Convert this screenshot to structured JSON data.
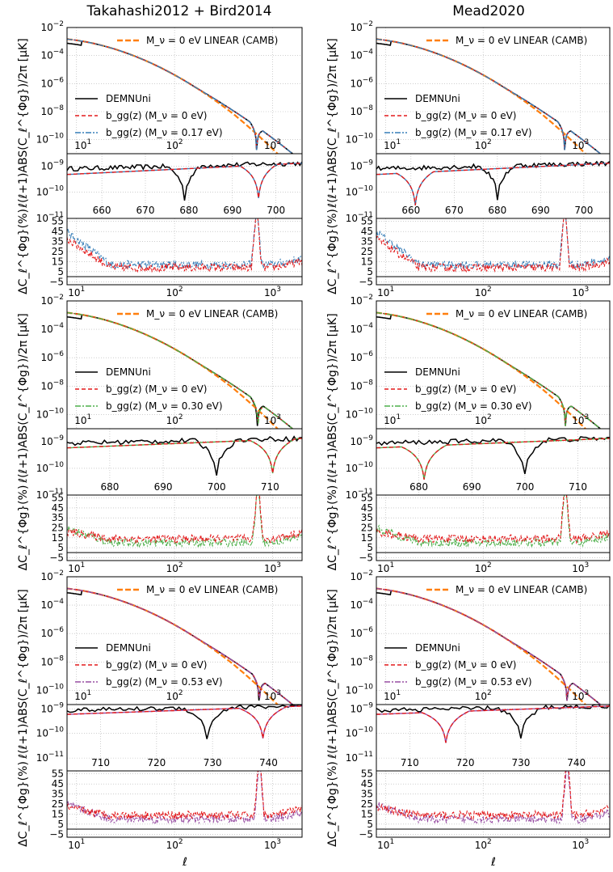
{
  "columns": [
    "Takahashi2012 + Bird2014",
    "Mead2020"
  ],
  "xlabel": "ℓ",
  "ylabel_main": "ℓ(ℓ+1)ABS(C_ℓ^{Φg})/2π [μK]",
  "ylabel_diff": "ΔC_ℓ^{Φg}(%)",
  "colors": {
    "demnuni": "#000000",
    "linear": "#ff7f0e",
    "bgg_massless": "#e41a1c",
    "bgg_017": "#377eb8",
    "bgg_030": "#4daf4a",
    "bgg_053": "#984ea3",
    "grid": "#b0b0b0"
  },
  "chart_data": [
    {
      "type": "line",
      "row": 0,
      "col": 0,
      "model": "Takahashi2012 + Bird2014",
      "neutrino_mass": "0.17",
      "legend": {
        "linear": "M_ν = 0 eV LINEAR (CAMB)",
        "demnuni": "DEMNUni",
        "massless": "b_gg(z)  (M_ν = 0 eV)",
        "massive": "b_gg(z)  (M_ν = 0.17 eV)"
      },
      "main": {
        "xlim": [
          8,
          2000
        ],
        "ylim": [
          1e-11,
          0.01
        ],
        "xticks": [
          "10^1",
          "10^2",
          "10^3"
        ],
        "yticks": [
          "10^-2",
          "10^-4",
          "10^-6",
          "10^-8",
          "10^-10"
        ],
        "zero_crossing": {
          "demnuni": 690,
          "massless": 690,
          "massive": 690
        }
      },
      "zoom": {
        "xlim": [
          652,
          706
        ],
        "ylim": [
          1e-11,
          3e-09
        ],
        "xticks": [
          660,
          670,
          680,
          690,
          700
        ],
        "yticks": [
          "10^-9",
          "10^-10",
          "10^-11"
        ],
        "dip_demnuni": 679,
        "dip_model": 696
      },
      "diff": {
        "xlim": [
          8,
          2000
        ],
        "ylim": [
          -8,
          58
        ],
        "yticks": [
          55,
          45,
          35,
          25,
          15,
          5,
          -5
        ]
      }
    },
    {
      "type": "line",
      "row": 0,
      "col": 1,
      "model": "Mead2020",
      "neutrino_mass": "0.17",
      "legend": {
        "linear": "M_ν = 0 eV LINEAR (CAMB)",
        "demnuni": "DEMNUni",
        "massless": "b_gg(z)  (M_ν = 0 eV)",
        "massive": "b_gg(z)  (M_ν = 0.17 eV)"
      },
      "main": {
        "xlim": [
          8,
          2000
        ],
        "ylim": [
          1e-11,
          0.01
        ],
        "xticks": [
          "10^1",
          "10^2",
          "10^3"
        ],
        "yticks": [
          "10^-2",
          "10^-4",
          "10^-6",
          "10^-8",
          "10^-10"
        ],
        "zero_crossing": {
          "demnuni": 690,
          "massless": 690,
          "massive": 690
        }
      },
      "zoom": {
        "xlim": [
          652,
          706
        ],
        "ylim": [
          1e-11,
          3e-09
        ],
        "xticks": [
          660,
          670,
          680,
          690,
          700
        ],
        "yticks": [
          "10^-9",
          "10^-10",
          "10^-11"
        ],
        "dip_demnuni": 680,
        "dip_model": 661
      },
      "diff": {
        "xlim": [
          8,
          2000
        ],
        "ylim": [
          -8,
          58
        ],
        "yticks": [
          55,
          45,
          35,
          25,
          15,
          5,
          -5
        ]
      }
    },
    {
      "type": "line",
      "row": 1,
      "col": 0,
      "model": "Takahashi2012 + Bird2014",
      "neutrino_mass": "0.30",
      "legend": {
        "linear": "M_ν = 0 eV LINEAR (CAMB)",
        "demnuni": "DEMNUni",
        "massless": "b_gg(z)  (M_ν = 0 eV)",
        "massive": "b_gg(z)  (M_ν = 0.30 eV)"
      },
      "main": {
        "xlim": [
          8,
          2000
        ],
        "ylim": [
          1e-11,
          0.01
        ],
        "xticks": [
          "10^1",
          "10^2",
          "10^3"
        ],
        "yticks": [
          "10^-2",
          "10^-4",
          "10^-6",
          "10^-8",
          "10^-10"
        ],
        "zero_crossing": {
          "demnuni": 700,
          "massless": 710,
          "massive": 710
        }
      },
      "zoom": {
        "xlim": [
          672,
          716
        ],
        "ylim": [
          1e-11,
          3e-09
        ],
        "xticks": [
          680,
          690,
          700,
          710
        ],
        "yticks": [
          "10^-9",
          "10^-10",
          "10^-11"
        ],
        "dip_demnuni": 700,
        "dip_model": 710.5
      },
      "diff": {
        "xlim": [
          8,
          2000
        ],
        "ylim": [
          -8,
          58
        ],
        "yticks": [
          55,
          45,
          35,
          25,
          15,
          5,
          -5
        ]
      }
    },
    {
      "type": "line",
      "row": 1,
      "col": 1,
      "model": "Mead2020",
      "neutrino_mass": "0.30",
      "legend": {
        "linear": "M_ν = 0 eV LINEAR (CAMB)",
        "demnuni": "DEMNUni",
        "massless": "b_gg(z)  (M_ν = 0 eV)",
        "massive": "b_gg(z)  (M_ν = 0.30 eV)"
      },
      "main": {
        "xlim": [
          8,
          2000
        ],
        "ylim": [
          1e-11,
          0.01
        ],
        "xticks": [
          "10^1",
          "10^2",
          "10^3"
        ],
        "yticks": [
          "10^-2",
          "10^-4",
          "10^-6",
          "10^-8",
          "10^-10"
        ],
        "zero_crossing": {
          "demnuni": 700,
          "massless": 700,
          "massive": 700
        }
      },
      "zoom": {
        "xlim": [
          672,
          716
        ],
        "ylim": [
          1e-11,
          3e-09
        ],
        "xticks": [
          680,
          690,
          700,
          710
        ],
        "yticks": [
          "10^-9",
          "10^-10",
          "10^-11"
        ],
        "dip_demnuni": 700,
        "dip_model": 681
      },
      "diff": {
        "xlim": [
          8,
          2000
        ],
        "ylim": [
          -8,
          58
        ],
        "yticks": [
          55,
          45,
          35,
          25,
          15,
          5,
          -5
        ]
      }
    },
    {
      "type": "line",
      "row": 2,
      "col": 0,
      "model": "Takahashi2012 + Bird2014",
      "neutrino_mass": "0.53",
      "legend": {
        "linear": "M_ν = 0 eV LINEAR (CAMB)",
        "demnuni": "DEMNUni",
        "massless": "b_gg(z)  (M_ν = 0 eV)",
        "massive": "b_gg(z)  (M_ν = 0.53 eV)"
      },
      "main": {
        "xlim": [
          8,
          2000
        ],
        "ylim": [
          1e-11,
          0.01
        ],
        "xticks": [
          "10^1",
          "10^2",
          "10^3"
        ],
        "yticks": [
          "10^-2",
          "10^-4",
          "10^-6",
          "10^-8",
          "10^-10"
        ],
        "zero_crossing": {
          "demnuni": 730,
          "massless": 735,
          "massive": 735
        }
      },
      "zoom": {
        "xlim": [
          704,
          746
        ],
        "ylim": [
          3e-12,
          1.5e-09
        ],
        "xticks": [
          710,
          720,
          730,
          740
        ],
        "yticks": [
          "10^-9",
          "10^-10",
          "10^-11"
        ],
        "dip_demnuni": 729,
        "dip_model": 739
      },
      "diff": {
        "xlim": [
          8,
          2000
        ],
        "ylim": [
          -8,
          58
        ],
        "yticks": [
          55,
          45,
          35,
          25,
          15,
          5,
          -5
        ]
      }
    },
    {
      "type": "line",
      "row": 2,
      "col": 1,
      "model": "Mead2020",
      "neutrino_mass": "0.53",
      "legend": {
        "linear": "M_ν = 0 eV LINEAR (CAMB)",
        "demnuni": "DEMNUni",
        "massless": "b_gg(z)  (M_ν = 0 eV)",
        "massive": "b_gg(z)  (M_ν = 0.53 eV)"
      },
      "main": {
        "xlim": [
          8,
          2000
        ],
        "ylim": [
          1e-11,
          0.01
        ],
        "xticks": [
          "10^1",
          "10^2",
          "10^3"
        ],
        "yticks": [
          "10^-2",
          "10^-4",
          "10^-6",
          "10^-8",
          "10^-10"
        ],
        "zero_crossing": {
          "demnuni": 730,
          "massless": 730,
          "massive": 730
        }
      },
      "zoom": {
        "xlim": [
          704,
          746
        ],
        "ylim": [
          3e-12,
          1.5e-09
        ],
        "xticks": [
          710,
          720,
          730,
          740
        ],
        "yticks": [
          "10^-9",
          "10^-10",
          "10^-11"
        ],
        "dip_demnuni": 730,
        "dip_model": 716.5
      },
      "diff": {
        "xlim": [
          8,
          2000
        ],
        "ylim": [
          -8,
          58
        ],
        "yticks": [
          55,
          45,
          35,
          25,
          15,
          5,
          -5
        ]
      }
    }
  ]
}
